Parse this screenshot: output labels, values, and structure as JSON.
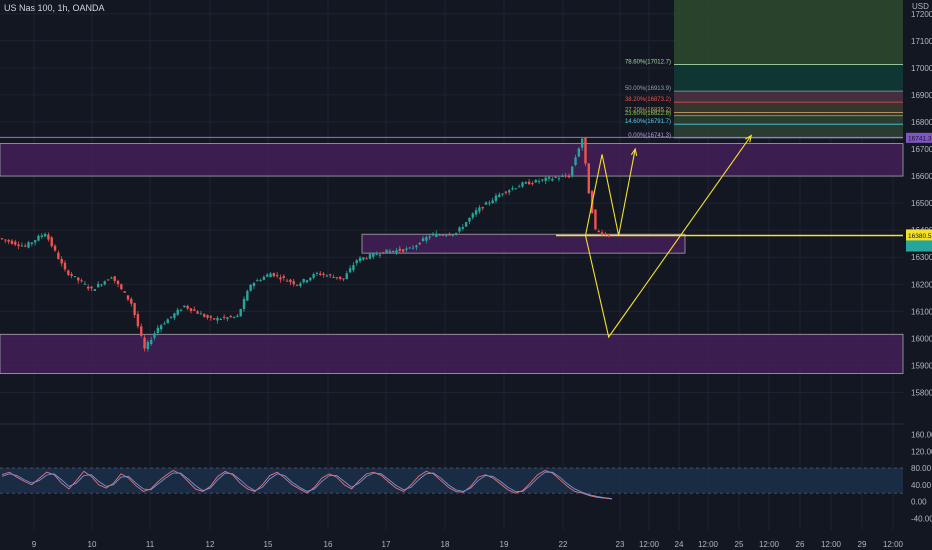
{
  "header": {
    "symbol_line": "US Nas 100, 1h, OANDA"
  },
  "colors": {
    "background": "#131722",
    "grid": "#1f2330",
    "up": "#26a69a",
    "down": "#ef5350",
    "zone_fill": "#4a1f5e",
    "projection": "#f5e12a",
    "fib_green": "#2e4a2e",
    "fib_teal": "#0f3a35",
    "stoch_k": "#e57373",
    "stoch_d": "#7e8fd4",
    "stoch_band": "#1c2e48"
  },
  "chart_data": [
    {
      "type": "candlestick",
      "title": "",
      "currency_label": "USD",
      "y_range": [
        15725,
        17260
      ],
      "y_ticks": [
        "17200.0",
        "17100.0",
        "17000.0",
        "16900.0",
        "16800.0",
        "16700.0",
        "16600.0",
        "16500.0",
        "16400.0",
        "16300.0",
        "16200.0",
        "16100.0",
        "16000.0",
        "15900.0",
        "15800.0"
      ],
      "x_ticks": [
        "9",
        "10",
        "11",
        "12",
        "15",
        "16",
        "17",
        "18",
        "19",
        "22",
        "23",
        "12:00",
        "24",
        "12:00",
        "25",
        "12:00",
        "26",
        "12:00",
        "29",
        "12:00"
      ],
      "candle_keypoints": [
        {
          "t": 0,
          "price": 16370
        },
        {
          "t": 8,
          "price": 16340
        },
        {
          "t": 14,
          "price": 16390
        },
        {
          "t": 20,
          "price": 16250
        },
        {
          "t": 28,
          "price": 16180
        },
        {
          "t": 34,
          "price": 16230
        },
        {
          "t": 40,
          "price": 16130
        },
        {
          "t": 44,
          "price": 15960
        },
        {
          "t": 48,
          "price": 16040
        },
        {
          "t": 56,
          "price": 16120
        },
        {
          "t": 64,
          "price": 16070
        },
        {
          "t": 72,
          "price": 16080
        },
        {
          "t": 76,
          "price": 16200
        },
        {
          "t": 82,
          "price": 16240
        },
        {
          "t": 90,
          "price": 16200
        },
        {
          "t": 96,
          "price": 16240
        },
        {
          "t": 104,
          "price": 16220
        },
        {
          "t": 108,
          "price": 16290
        },
        {
          "t": 116,
          "price": 16320
        },
        {
          "t": 124,
          "price": 16330
        },
        {
          "t": 130,
          "price": 16380
        },
        {
          "t": 138,
          "price": 16390
        },
        {
          "t": 144,
          "price": 16470
        },
        {
          "t": 152,
          "price": 16540
        },
        {
          "t": 158,
          "price": 16570
        },
        {
          "t": 166,
          "price": 16590
        },
        {
          "t": 172,
          "price": 16600
        },
        {
          "t": 176,
          "price": 16740
        },
        {
          "t": 178,
          "price": 16540
        },
        {
          "t": 180,
          "price": 16400
        },
        {
          "t": 184,
          "price": 16380
        }
      ],
      "current_price_label": "16380.5",
      "top_price_label": "16741.3",
      "horizontal_levels": [
        16741,
        16380
      ],
      "zones": [
        {
          "name": "upper-supply-zone",
          "from": 16600,
          "to": 16720
        },
        {
          "name": "middle-demand-zone",
          "from": 16315,
          "to": 16385
        },
        {
          "name": "lower-demand-zone",
          "from": 15870,
          "to": 16015
        }
      ],
      "fibonacci": [
        {
          "label": "78.60%(17012.7)",
          "price": 17012.7
        },
        {
          "label": "50.00%(16913.9)",
          "price": 16913.9
        },
        {
          "label": "38.20%(16873.2)",
          "price": 16873.2
        },
        {
          "label": "27.20%(16835.2)",
          "price": 16835.2
        },
        {
          "label": "23.60%(16822.8)",
          "price": 16822.8
        },
        {
          "label": "14.60%(16791.7)",
          "price": 16791.7
        },
        {
          "label": "0.00%(16741.3)",
          "price": 16741.3
        }
      ],
      "projection_paths": [
        {
          "name": "projection-path-up",
          "points": [
            [
              176,
              16380
            ],
            [
              181,
              16680
            ],
            [
              186,
              16380
            ],
            [
              191,
              16700
            ]
          ]
        },
        {
          "name": "projection-path-down",
          "points": [
            [
              176,
              16380
            ],
            [
              183,
              16005
            ],
            [
              226,
              16750
            ]
          ]
        }
      ]
    },
    {
      "type": "line",
      "title": "",
      "y_range": [
        -45,
        170
      ],
      "y_ticks": [
        "160.00",
        "120.00",
        "80.00",
        "40.00",
        "0.00",
        "-40.00"
      ],
      "band": [
        20,
        80
      ],
      "series": [
        {
          "color": "#e57373",
          "values": [
            64,
            70,
            58,
            48,
            40,
            55,
            70,
            64,
            44,
            30,
            50,
            72,
            60,
            40,
            32,
            44,
            66,
            56,
            38,
            24,
            30,
            48,
            62,
            74,
            66,
            48,
            30,
            24,
            36,
            60,
            72,
            64,
            44,
            30,
            24,
            40,
            62,
            70,
            56,
            40,
            30,
            20,
            34,
            56,
            66,
            58,
            40,
            30,
            50,
            66,
            70,
            62,
            46,
            32,
            24,
            40,
            60,
            72,
            66,
            50,
            34,
            24,
            22,
            36,
            58,
            64,
            56,
            42,
            28,
            20,
            26,
            44,
            64,
            74,
            68,
            52,
            36,
            24,
            20,
            14,
            10,
            8,
            6
          ]
        },
        {
          "color": "#7e8fd4",
          "values": [
            60,
            66,
            62,
            52,
            44,
            50,
            63,
            66,
            52,
            36,
            44,
            62,
            64,
            48,
            36,
            40,
            58,
            60,
            44,
            30,
            28,
            42,
            56,
            68,
            68,
            54,
            38,
            26,
            32,
            52,
            68,
            66,
            52,
            36,
            26,
            34,
            54,
            66,
            62,
            46,
            34,
            24,
            30,
            48,
            62,
            62,
            48,
            34,
            44,
            60,
            68,
            66,
            52,
            38,
            28,
            34,
            52,
            66,
            68,
            56,
            40,
            28,
            24,
            32,
            50,
            62,
            60,
            48,
            34,
            24,
            24,
            38,
            56,
            70,
            70,
            58,
            42,
            30,
            22,
            16,
            12,
            9,
            7
          ]
        }
      ]
    }
  ]
}
